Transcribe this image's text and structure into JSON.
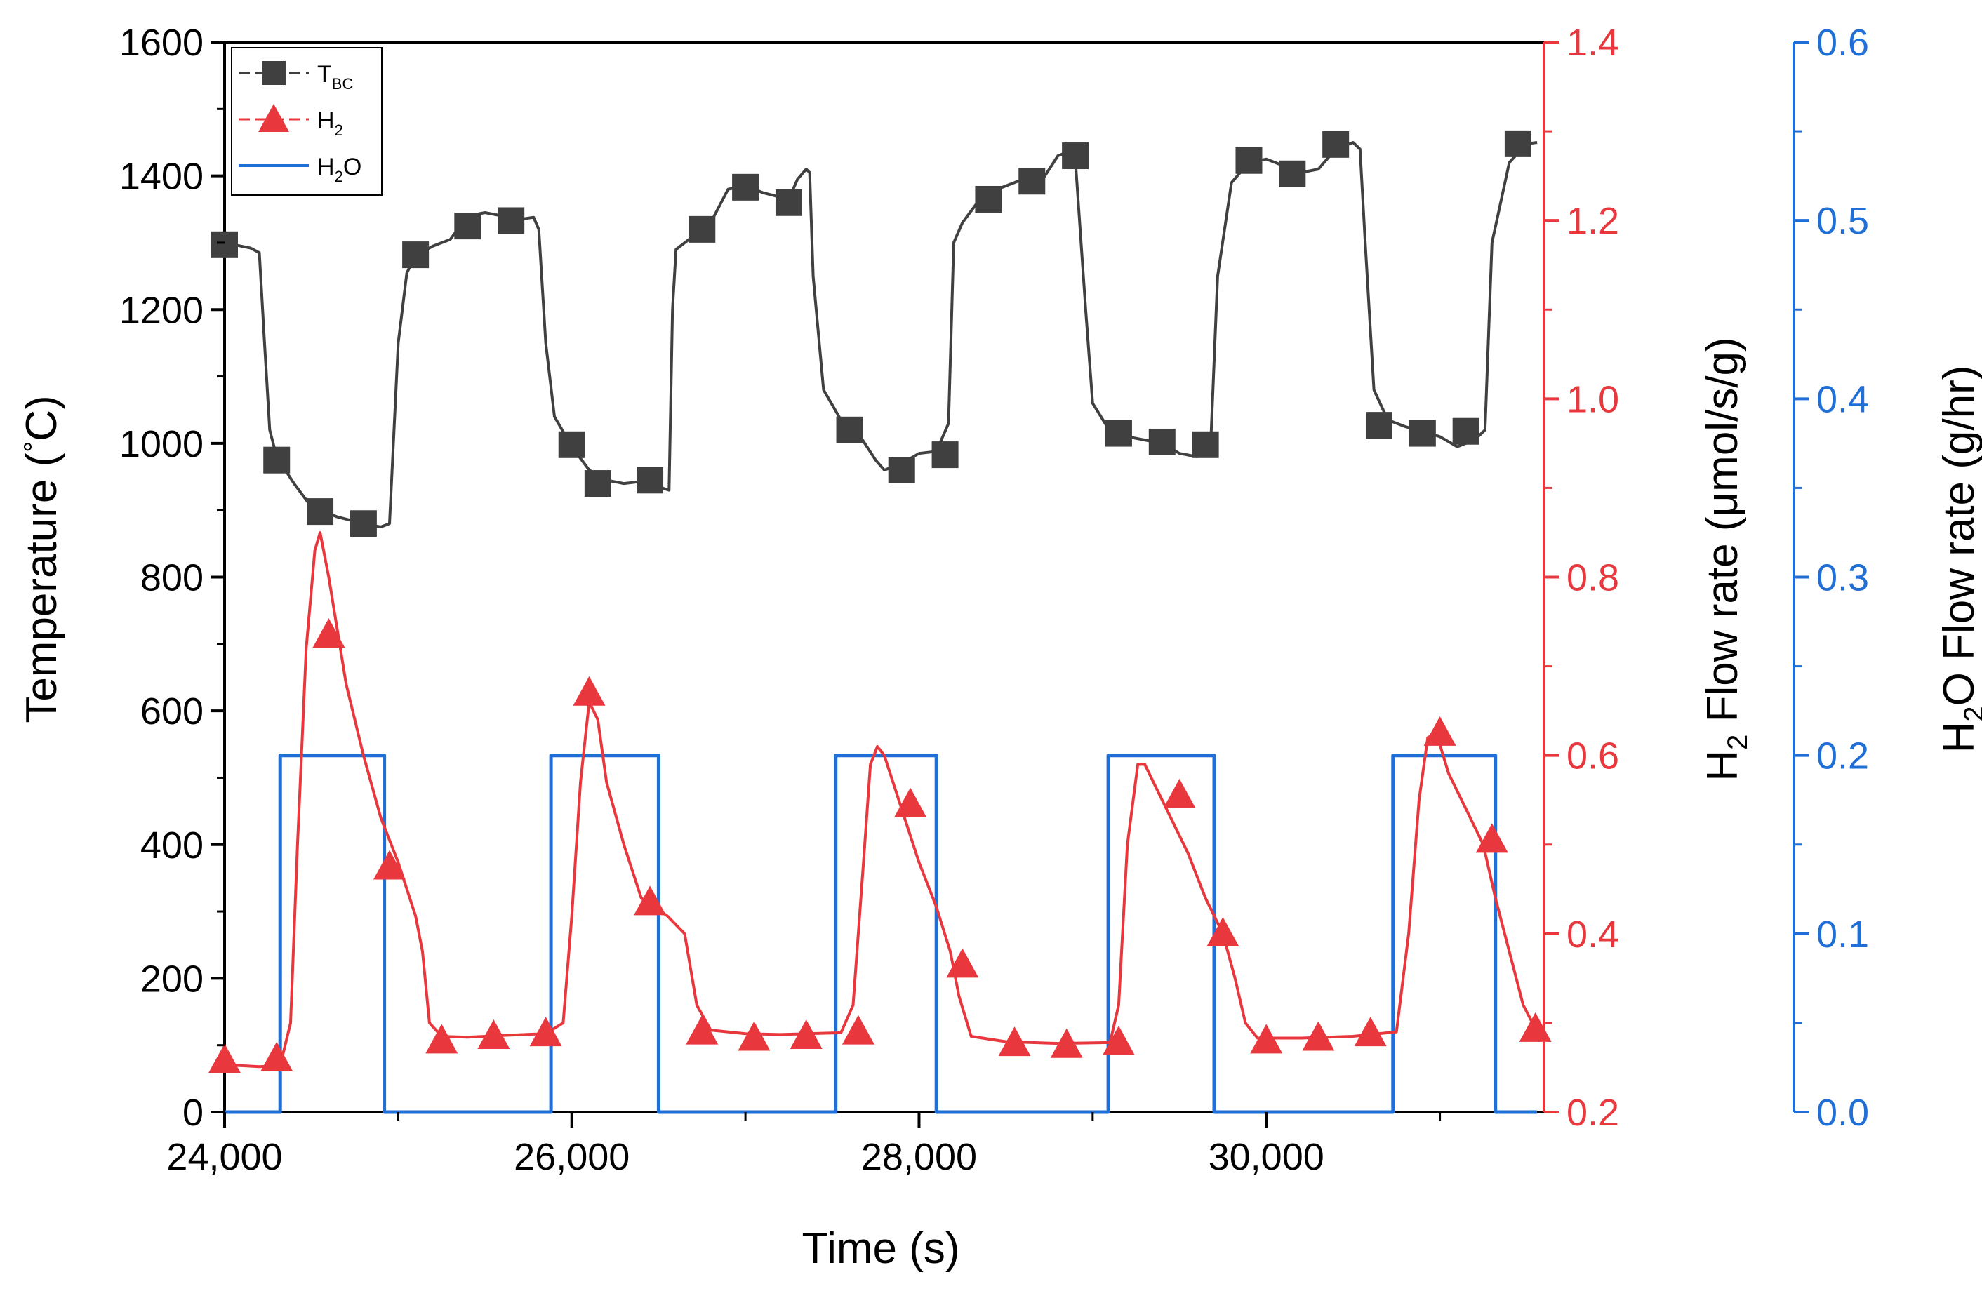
{
  "chart_data": {
    "type": "line",
    "title": "",
    "xlabel": "Time (s)",
    "xlim": [
      24000,
      31600
    ],
    "x_ticks": [
      24000,
      26000,
      28000,
      30000
    ],
    "x_tick_labels": [
      "24,000",
      "26,000",
      "28,000",
      "30,000"
    ],
    "axes": {
      "left": {
        "label_main": "Temperature (",
        "label_degree": "°",
        "label_rest": "C)",
        "ylim": [
          0,
          1600
        ],
        "ticks": [
          0,
          200,
          400,
          600,
          800,
          1000,
          1200,
          1400,
          1600
        ],
        "tick_labels": [
          "0",
          "200",
          "400",
          "600",
          "800",
          "1000",
          "1200",
          "1400",
          "1600"
        ],
        "color": "#000000"
      },
      "right1": {
        "label_main": "H",
        "label_sub": "2",
        "label_rest": " Flow rate (",
        "label_mu": "μ",
        "label_unit": "mol/s/g)",
        "ylim": [
          0.2,
          1.4
        ],
        "ticks": [
          0.2,
          0.4,
          0.6,
          0.8,
          1.0,
          1.2,
          1.4
        ],
        "tick_labels": [
          "0.2",
          "0.4",
          "0.6",
          "0.8",
          "1.0",
          "1.2",
          "1.4"
        ],
        "color": "#e8383d"
      },
      "right2": {
        "label_main": "H",
        "label_sub": "2",
        "label_rest": "O Flow rate (g/hr)",
        "ylim": [
          0.0,
          0.6
        ],
        "ticks": [
          0.0,
          0.1,
          0.2,
          0.3,
          0.4,
          0.5,
          0.6
        ],
        "tick_labels": [
          "0.0",
          "0.1",
          "0.2",
          "0.3",
          "0.4",
          "0.5",
          "0.6"
        ],
        "color": "#1f6fd6"
      }
    },
    "legend": {
      "position": "top-left",
      "entries": [
        {
          "main": "T",
          "sub": "BC",
          "rest": ""
        },
        {
          "main": "H",
          "sub": "2",
          "rest": ""
        },
        {
          "main": "H",
          "sub": "2",
          "rest": "O"
        }
      ]
    },
    "series": [
      {
        "name": "T_BC",
        "axis": "left",
        "color": "#404040",
        "marker": "square",
        "line": [
          [
            24000,
            1300
          ],
          [
            24150,
            1292
          ],
          [
            24200,
            1285
          ],
          [
            24230,
            1150
          ],
          [
            24260,
            1020
          ],
          [
            24300,
            980
          ],
          [
            24400,
            940
          ],
          [
            24500,
            905
          ],
          [
            24650,
            890
          ],
          [
            24800,
            880
          ],
          [
            24900,
            875
          ],
          [
            24950,
            880
          ],
          [
            25000,
            1150
          ],
          [
            25050,
            1255
          ],
          [
            25100,
            1280
          ],
          [
            25200,
            1295
          ],
          [
            25300,
            1305
          ],
          [
            25400,
            1340
          ],
          [
            25500,
            1345
          ],
          [
            25600,
            1340
          ],
          [
            25700,
            1335
          ],
          [
            25780,
            1338
          ],
          [
            25810,
            1320
          ],
          [
            25850,
            1150
          ],
          [
            25900,
            1040
          ],
          [
            26000,
            995
          ],
          [
            26100,
            960
          ],
          [
            26200,
            945
          ],
          [
            26300,
            940
          ],
          [
            26400,
            943
          ],
          [
            26500,
            935
          ],
          [
            26560,
            930
          ],
          [
            26580,
            1200
          ],
          [
            26600,
            1290
          ],
          [
            26700,
            1310
          ],
          [
            26800,
            1330
          ],
          [
            26900,
            1380
          ],
          [
            27000,
            1385
          ],
          [
            27100,
            1375
          ],
          [
            27250,
            1365
          ],
          [
            27300,
            1395
          ],
          [
            27350,
            1410
          ],
          [
            27370,
            1405
          ],
          [
            27390,
            1250
          ],
          [
            27450,
            1080
          ],
          [
            27550,
            1035
          ],
          [
            27650,
            1015
          ],
          [
            27750,
            975
          ],
          [
            27800,
            960
          ],
          [
            27900,
            970
          ],
          [
            28000,
            985
          ],
          [
            28100,
            988
          ],
          [
            28170,
            1030
          ],
          [
            28200,
            1300
          ],
          [
            28250,
            1330
          ],
          [
            28350,
            1365
          ],
          [
            28450,
            1380
          ],
          [
            28600,
            1395
          ],
          [
            28700,
            1390
          ],
          [
            28800,
            1430
          ],
          [
            28850,
            1435
          ],
          [
            28900,
            1425
          ],
          [
            28960,
            1200
          ],
          [
            29000,
            1060
          ],
          [
            29100,
            1018
          ],
          [
            29200,
            1010
          ],
          [
            29300,
            1005
          ],
          [
            29400,
            1000
          ],
          [
            29500,
            985
          ],
          [
            29600,
            980
          ],
          [
            29680,
            1000
          ],
          [
            29720,
            1250
          ],
          [
            29800,
            1390
          ],
          [
            29900,
            1420
          ],
          [
            30000,
            1425
          ],
          [
            30100,
            1415
          ],
          [
            30200,
            1405
          ],
          [
            30300,
            1410
          ],
          [
            30400,
            1440
          ],
          [
            30500,
            1450
          ],
          [
            30540,
            1440
          ],
          [
            30570,
            1300
          ],
          [
            30620,
            1080
          ],
          [
            30700,
            1035
          ],
          [
            30800,
            1025
          ],
          [
            30900,
            1018
          ],
          [
            31000,
            1010
          ],
          [
            31100,
            995
          ],
          [
            31200,
            1005
          ],
          [
            31260,
            1020
          ],
          [
            31300,
            1300
          ],
          [
            31400,
            1420
          ],
          [
            31500,
            1448
          ],
          [
            31560,
            1450
          ]
        ],
        "markers": [
          [
            24000,
            1297
          ],
          [
            24300,
            975
          ],
          [
            24550,
            898
          ],
          [
            24800,
            880
          ],
          [
            25100,
            1282
          ],
          [
            25400,
            1325
          ],
          [
            25650,
            1333
          ],
          [
            26000,
            998
          ],
          [
            26150,
            940
          ],
          [
            26450,
            945
          ],
          [
            26750,
            1320
          ],
          [
            27000,
            1383
          ],
          [
            27250,
            1360
          ],
          [
            27600,
            1020
          ],
          [
            27900,
            960
          ],
          [
            28150,
            983
          ],
          [
            28400,
            1365
          ],
          [
            28650,
            1392
          ],
          [
            28900,
            1430
          ],
          [
            29150,
            1015
          ],
          [
            29400,
            1002
          ],
          [
            29650,
            998
          ],
          [
            29900,
            1423
          ],
          [
            30150,
            1403
          ],
          [
            30400,
            1447
          ],
          [
            30650,
            1027
          ],
          [
            30900,
            1015
          ],
          [
            31150,
            1018
          ],
          [
            31450,
            1448
          ]
        ]
      },
      {
        "name": "H2",
        "axis": "right1",
        "color": "#e8383d",
        "marker": "triangle",
        "line": [
          [
            24000,
            0.253
          ],
          [
            24100,
            0.252
          ],
          [
            24200,
            0.251
          ],
          [
            24320,
            0.252
          ],
          [
            24380,
            0.3
          ],
          [
            24420,
            0.5
          ],
          [
            24470,
            0.72
          ],
          [
            24520,
            0.83
          ],
          [
            24550,
            0.85
          ],
          [
            24600,
            0.8
          ],
          [
            24650,
            0.74
          ],
          [
            24700,
            0.68
          ],
          [
            24800,
            0.6
          ],
          [
            24900,
            0.53
          ],
          [
            25000,
            0.48
          ],
          [
            25050,
            0.45
          ],
          [
            25100,
            0.42
          ],
          [
            25140,
            0.38
          ],
          [
            25180,
            0.3
          ],
          [
            25250,
            0.285
          ],
          [
            25400,
            0.284
          ],
          [
            25600,
            0.286
          ],
          [
            25850,
            0.288
          ],
          [
            25950,
            0.3
          ],
          [
            26000,
            0.42
          ],
          [
            26050,
            0.57
          ],
          [
            26100,
            0.66
          ],
          [
            26150,
            0.64
          ],
          [
            26200,
            0.57
          ],
          [
            26300,
            0.5
          ],
          [
            26400,
            0.44
          ],
          [
            26550,
            0.42
          ],
          [
            26650,
            0.4
          ],
          [
            26720,
            0.32
          ],
          [
            26800,
            0.292
          ],
          [
            27000,
            0.288
          ],
          [
            27200,
            0.287
          ],
          [
            27550,
            0.289
          ],
          [
            27620,
            0.32
          ],
          [
            27680,
            0.48
          ],
          [
            27720,
            0.59
          ],
          [
            27760,
            0.61
          ],
          [
            27800,
            0.6
          ],
          [
            27900,
            0.54
          ],
          [
            28000,
            0.48
          ],
          [
            28100,
            0.43
          ],
          [
            28180,
            0.38
          ],
          [
            28230,
            0.33
          ],
          [
            28300,
            0.285
          ],
          [
            28500,
            0.279
          ],
          [
            28800,
            0.277
          ],
          [
            29100,
            0.278
          ],
          [
            29150,
            0.32
          ],
          [
            29200,
            0.5
          ],
          [
            29260,
            0.59
          ],
          [
            29300,
            0.59
          ],
          [
            29350,
            0.57
          ],
          [
            29450,
            0.53
          ],
          [
            29550,
            0.49
          ],
          [
            29650,
            0.44
          ],
          [
            29750,
            0.4
          ],
          [
            29820,
            0.35
          ],
          [
            29880,
            0.3
          ],
          [
            29950,
            0.283
          ],
          [
            30200,
            0.283
          ],
          [
            30500,
            0.285
          ],
          [
            30750,
            0.29
          ],
          [
            30820,
            0.4
          ],
          [
            30880,
            0.55
          ],
          [
            30930,
            0.62
          ],
          [
            30980,
            0.625
          ],
          [
            31050,
            0.58
          ],
          [
            31150,
            0.54
          ],
          [
            31250,
            0.5
          ],
          [
            31320,
            0.44
          ],
          [
            31400,
            0.38
          ],
          [
            31480,
            0.32
          ],
          [
            31560,
            0.29
          ]
        ],
        "markers": [
          [
            24000,
            0.258
          ],
          [
            24300,
            0.26
          ],
          [
            24600,
            0.735
          ],
          [
            24950,
            0.475
          ],
          [
            25250,
            0.28
          ],
          [
            25550,
            0.285
          ],
          [
            25850,
            0.288
          ],
          [
            26100,
            0.67
          ],
          [
            26450,
            0.435
          ],
          [
            26750,
            0.29
          ],
          [
            27050,
            0.283
          ],
          [
            27350,
            0.285
          ],
          [
            27650,
            0.29
          ],
          [
            27950,
            0.545
          ],
          [
            28250,
            0.365
          ],
          [
            28550,
            0.277
          ],
          [
            28850,
            0.275
          ],
          [
            29150,
            0.278
          ],
          [
            29500,
            0.555
          ],
          [
            29750,
            0.4
          ],
          [
            30000,
            0.28
          ],
          [
            30300,
            0.283
          ],
          [
            30600,
            0.288
          ],
          [
            31000,
            0.625
          ],
          [
            31300,
            0.505
          ],
          [
            31550,
            0.293
          ]
        ]
      },
      {
        "name": "H2O",
        "axis": "right2",
        "color": "#1f6fd6",
        "marker": "none",
        "line": [
          [
            24000,
            0.0
          ],
          [
            24320,
            0.0
          ],
          [
            24320,
            0.2
          ],
          [
            24920,
            0.2
          ],
          [
            24920,
            0.0
          ],
          [
            25880,
            0.0
          ],
          [
            25880,
            0.2
          ],
          [
            26500,
            0.2
          ],
          [
            26500,
            0.0
          ],
          [
            27520,
            0.0
          ],
          [
            27520,
            0.2
          ],
          [
            28100,
            0.2
          ],
          [
            28100,
            0.0
          ],
          [
            29090,
            0.0
          ],
          [
            29090,
            0.2
          ],
          [
            29700,
            0.2
          ],
          [
            29700,
            0.0
          ],
          [
            30730,
            0.0
          ],
          [
            30730,
            0.2
          ],
          [
            31320,
            0.2
          ],
          [
            31320,
            0.0
          ],
          [
            31560,
            0.0
          ]
        ]
      }
    ]
  }
}
